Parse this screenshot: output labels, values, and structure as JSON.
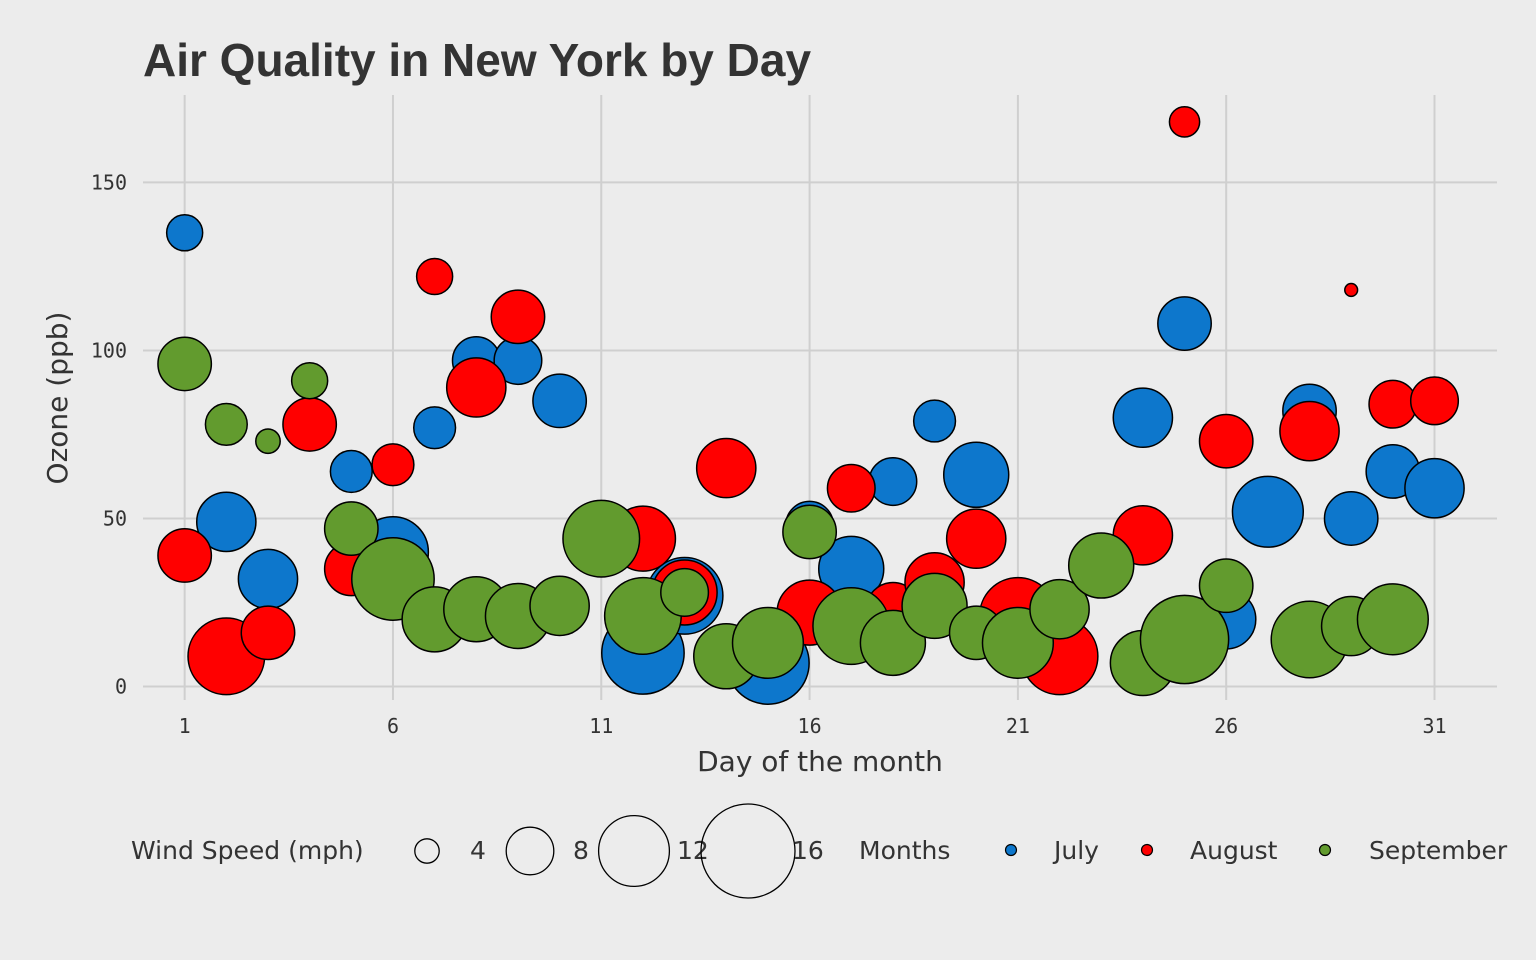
{
  "chart_data": {
    "type": "scatter",
    "title": "Air Quality in New York by Day",
    "xlabel": "Day of the month",
    "ylabel": "Ozone (ppb)",
    "xlim": [
      0,
      32.5
    ],
    "ylim": [
      -4,
      176
    ],
    "x_ticks": [
      1,
      6,
      11,
      16,
      21,
      26,
      31
    ],
    "y_ticks": [
      0,
      50,
      100,
      150
    ],
    "grid": true,
    "legend_position": "bottom",
    "size_variable": "Wind Speed (mph)",
    "size_legend": {
      "title": "Wind Speed (mph)",
      "values": [
        4,
        8,
        12,
        16
      ],
      "labels": [
        "4",
        "8",
        "12",
        "16"
      ]
    },
    "color_legend": {
      "title": "Months",
      "colors": [
        "#0d77cc",
        "#ff0000",
        "#629b2e"
      ]
    },
    "series": [
      {
        "name": "July",
        "color": "#0d77cc",
        "points": [
          {
            "day": 1,
            "ozone": 135,
            "wind": 6
          },
          {
            "day": 2,
            "ozone": 49,
            "wind": 10
          },
          {
            "day": 3,
            "ozone": 32,
            "wind": 10
          },
          {
            "day": 5,
            "ozone": 64,
            "wind": 7
          },
          {
            "day": 6,
            "ozone": 40,
            "wind": 12
          },
          {
            "day": 7,
            "ozone": 77,
            "wind": 7
          },
          {
            "day": 8,
            "ozone": 97,
            "wind": 8
          },
          {
            "day": 9,
            "ozone": 97,
            "wind": 8
          },
          {
            "day": 10,
            "ozone": 85,
            "wind": 9
          },
          {
            "day": 12,
            "ozone": 10,
            "wind": 14
          },
          {
            "day": 13,
            "ozone": 27,
            "wind": 13
          },
          {
            "day": 15,
            "ozone": 7,
            "wind": 14
          },
          {
            "day": 16,
            "ozone": 48,
            "wind": 8
          },
          {
            "day": 17,
            "ozone": 35,
            "wind": 11
          },
          {
            "day": 18,
            "ozone": 61,
            "wind": 8
          },
          {
            "day": 19,
            "ozone": 79,
            "wind": 7
          },
          {
            "day": 20,
            "ozone": 63,
            "wind": 11
          },
          {
            "day": 24,
            "ozone": 80,
            "wind": 10
          },
          {
            "day": 25,
            "ozone": 108,
            "wind": 9
          },
          {
            "day": 26,
            "ozone": 20,
            "wind": 10
          },
          {
            "day": 27,
            "ozone": 52,
            "wind": 12
          },
          {
            "day": 28,
            "ozone": 82,
            "wind": 9
          },
          {
            "day": 29,
            "ozone": 50,
            "wind": 9
          },
          {
            "day": 30,
            "ozone": 64,
            "wind": 9
          },
          {
            "day": 31,
            "ozone": 59,
            "wind": 10
          }
        ]
      },
      {
        "name": "August",
        "color": "#ff0000",
        "points": [
          {
            "day": 1,
            "ozone": 39,
            "wind": 9
          },
          {
            "day": 2,
            "ozone": 9,
            "wind": 13
          },
          {
            "day": 3,
            "ozone": 16,
            "wind": 9
          },
          {
            "day": 4,
            "ozone": 78,
            "wind": 9
          },
          {
            "day": 5,
            "ozone": 35,
            "wind": 9
          },
          {
            "day": 6,
            "ozone": 66,
            "wind": 7
          },
          {
            "day": 7,
            "ozone": 122,
            "wind": 6
          },
          {
            "day": 8,
            "ozone": 89,
            "wind": 10
          },
          {
            "day": 9,
            "ozone": 110,
            "wind": 9
          },
          {
            "day": 12,
            "ozone": 44,
            "wind": 11
          },
          {
            "day": 13,
            "ozone": 28,
            "wind": 11
          },
          {
            "day": 14,
            "ozone": 65,
            "wind": 10
          },
          {
            "day": 16,
            "ozone": 22,
            "wind": 11
          },
          {
            "day": 17,
            "ozone": 59,
            "wind": 8
          },
          {
            "day": 18,
            "ozone": 23,
            "wind": 9
          },
          {
            "day": 19,
            "ozone": 31,
            "wind": 10
          },
          {
            "day": 20,
            "ozone": 44,
            "wind": 10
          },
          {
            "day": 21,
            "ozone": 21,
            "wind": 13
          },
          {
            "day": 22,
            "ozone": 9,
            "wind": 13
          },
          {
            "day": 24,
            "ozone": 45,
            "wind": 10
          },
          {
            "day": 25,
            "ozone": 168,
            "wind": 5
          },
          {
            "day": 26,
            "ozone": 73,
            "wind": 9
          },
          {
            "day": 28,
            "ozone": 76,
            "wind": 10
          },
          {
            "day": 29,
            "ozone": 118,
            "wind": 2
          },
          {
            "day": 30,
            "ozone": 84,
            "wind": 8
          },
          {
            "day": 31,
            "ozone": 85,
            "wind": 8
          }
        ]
      },
      {
        "name": "September",
        "color": "#629b2e",
        "points": [
          {
            "day": 1,
            "ozone": 96,
            "wind": 9
          },
          {
            "day": 2,
            "ozone": 78,
            "wind": 7
          },
          {
            "day": 3,
            "ozone": 73,
            "wind": 4
          },
          {
            "day": 4,
            "ozone": 91,
            "wind": 6
          },
          {
            "day": 5,
            "ozone": 47,
            "wind": 9
          },
          {
            "day": 6,
            "ozone": 32,
            "wind": 14
          },
          {
            "day": 7,
            "ozone": 20,
            "wind": 11
          },
          {
            "day": 8,
            "ozone": 23,
            "wind": 11
          },
          {
            "day": 9,
            "ozone": 21,
            "wind": 11
          },
          {
            "day": 10,
            "ozone": 24,
            "wind": 10
          },
          {
            "day": 11,
            "ozone": 44,
            "wind": 13
          },
          {
            "day": 12,
            "ozone": 21,
            "wind": 13
          },
          {
            "day": 13,
            "ozone": 28,
            "wind": 8
          },
          {
            "day": 14,
            "ozone": 9,
            "wind": 11
          },
          {
            "day": 15,
            "ozone": 13,
            "wind": 12
          },
          {
            "day": 16,
            "ozone": 46,
            "wind": 9
          },
          {
            "day": 17,
            "ozone": 18,
            "wind": 13
          },
          {
            "day": 18,
            "ozone": 13,
            "wind": 11
          },
          {
            "day": 19,
            "ozone": 24,
            "wind": 11
          },
          {
            "day": 20,
            "ozone": 16,
            "wind": 9
          },
          {
            "day": 21,
            "ozone": 13,
            "wind": 12
          },
          {
            "day": 22,
            "ozone": 23,
            "wind": 10
          },
          {
            "day": 23,
            "ozone": 36,
            "wind": 11
          },
          {
            "day": 24,
            "ozone": 7,
            "wind": 11
          },
          {
            "day": 25,
            "ozone": 14,
            "wind": 15
          },
          {
            "day": 26,
            "ozone": 30,
            "wind": 9
          },
          {
            "day": 28,
            "ozone": 14,
            "wind": 13
          },
          {
            "day": 29,
            "ozone": 18,
            "wind": 10
          },
          {
            "day": 30,
            "ozone": 20,
            "wind": 12
          }
        ]
      }
    ]
  }
}
